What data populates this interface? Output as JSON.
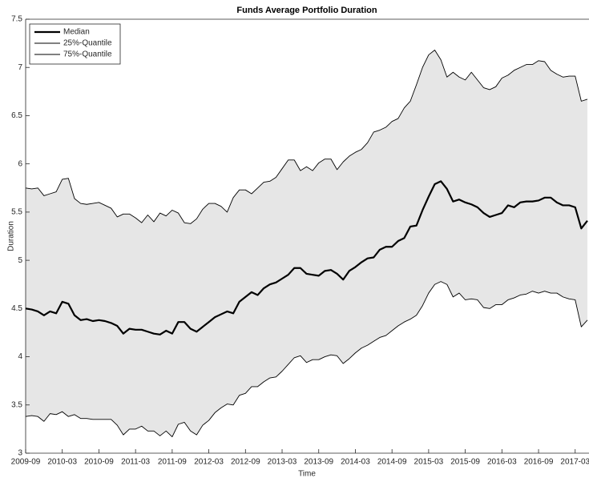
{
  "chart_data": {
    "type": "line",
    "title": "Funds Average Portfolio Duration",
    "x_label": "Time",
    "y_label": "Duration",
    "x": [
      "2009-09",
      "2009-10",
      "2009-11",
      "2009-12",
      "2010-01",
      "2010-02",
      "2010-03",
      "2010-04",
      "2010-05",
      "2010-06",
      "2010-07",
      "2010-08",
      "2010-09",
      "2010-10",
      "2010-11",
      "2010-12",
      "2011-01",
      "2011-02",
      "2011-03",
      "2011-04",
      "2011-05",
      "2011-06",
      "2011-07",
      "2011-08",
      "2011-09",
      "2011-10",
      "2011-11",
      "2011-12",
      "2012-01",
      "2012-02",
      "2012-03",
      "2012-04",
      "2012-05",
      "2012-06",
      "2012-07",
      "2012-08",
      "2012-09",
      "2012-10",
      "2012-11",
      "2012-12",
      "2013-01",
      "2013-02",
      "2013-03",
      "2013-04",
      "2013-05",
      "2013-06",
      "2013-07",
      "2013-08",
      "2013-09",
      "2013-10",
      "2013-11",
      "2013-12",
      "2014-01",
      "2014-02",
      "2014-03",
      "2014-04",
      "2014-05",
      "2014-06",
      "2014-07",
      "2014-08",
      "2014-09",
      "2014-10",
      "2014-11",
      "2014-12",
      "2015-01",
      "2015-02",
      "2015-03",
      "2015-04",
      "2015-05",
      "2015-06",
      "2015-07",
      "2015-08",
      "2015-09",
      "2015-10",
      "2015-11",
      "2015-12",
      "2016-01",
      "2016-02",
      "2016-03",
      "2016-04",
      "2016-05",
      "2016-06",
      "2016-07",
      "2016-08",
      "2016-09",
      "2016-10",
      "2016-11",
      "2016-12",
      "2017-01",
      "2017-02",
      "2017-03",
      "2017-04",
      "2017-05"
    ],
    "series": [
      {
        "name": "Median",
        "color": "#000000",
        "width": 2.2,
        "values": [
          4.5,
          4.49,
          4.47,
          4.43,
          4.47,
          4.45,
          4.57,
          4.55,
          4.43,
          4.38,
          4.39,
          4.37,
          4.38,
          4.37,
          4.35,
          4.32,
          4.24,
          4.29,
          4.28,
          4.28,
          4.26,
          4.24,
          4.23,
          4.27,
          4.24,
          4.36,
          4.36,
          4.29,
          4.26,
          4.31,
          4.36,
          4.41,
          4.44,
          4.47,
          4.45,
          4.57,
          4.62,
          4.67,
          4.64,
          4.71,
          4.75,
          4.77,
          4.81,
          4.85,
          4.92,
          4.92,
          4.86,
          4.85,
          4.84,
          4.89,
          4.9,
          4.86,
          4.8,
          4.89,
          4.93,
          4.98,
          5.02,
          5.03,
          5.11,
          5.14,
          5.14,
          5.2,
          5.23,
          5.35,
          5.36,
          5.52,
          5.66,
          5.79,
          5.82,
          5.74,
          5.61,
          5.63,
          5.6,
          5.58,
          5.55,
          5.49,
          5.45,
          5.47,
          5.49,
          5.57,
          5.55,
          5.6,
          5.61,
          5.61,
          5.62,
          5.65,
          5.65,
          5.6,
          5.57,
          5.57,
          5.55,
          5.33,
          5.41
        ]
      },
      {
        "name": "25%-Quantile",
        "color": "#000000",
        "width": 0.9,
        "values": [
          3.38,
          3.39,
          3.38,
          3.33,
          3.41,
          3.4,
          3.43,
          3.38,
          3.4,
          3.36,
          3.36,
          3.35,
          3.35,
          3.35,
          3.35,
          3.29,
          3.19,
          3.25,
          3.25,
          3.28,
          3.23,
          3.23,
          3.18,
          3.23,
          3.17,
          3.3,
          3.32,
          3.23,
          3.19,
          3.29,
          3.34,
          3.42,
          3.47,
          3.51,
          3.5,
          3.6,
          3.62,
          3.69,
          3.69,
          3.74,
          3.78,
          3.79,
          3.85,
          3.92,
          3.99,
          4.01,
          3.94,
          3.97,
          3.97,
          4.0,
          4.02,
          4.01,
          3.93,
          3.98,
          4.04,
          4.09,
          4.12,
          4.16,
          4.2,
          4.22,
          4.27,
          4.32,
          4.36,
          4.39,
          4.43,
          4.53,
          4.66,
          4.75,
          4.78,
          4.75,
          4.62,
          4.66,
          4.59,
          4.6,
          4.59,
          4.51,
          4.5,
          4.54,
          4.54,
          4.59,
          4.61,
          4.64,
          4.65,
          4.68,
          4.66,
          4.68,
          4.66,
          4.66,
          4.62,
          4.6,
          4.59,
          4.31,
          4.38
        ]
      },
      {
        "name": "75%-Quantile",
        "color": "#000000",
        "width": 0.9,
        "values": [
          5.75,
          5.74,
          5.75,
          5.67,
          5.69,
          5.71,
          5.84,
          5.85,
          5.64,
          5.59,
          5.58,
          5.59,
          5.6,
          5.57,
          5.54,
          5.45,
          5.48,
          5.48,
          5.44,
          5.39,
          5.47,
          5.4,
          5.49,
          5.46,
          5.52,
          5.49,
          5.39,
          5.38,
          5.43,
          5.53,
          5.59,
          5.59,
          5.56,
          5.5,
          5.65,
          5.73,
          5.73,
          5.69,
          5.75,
          5.81,
          5.82,
          5.86,
          5.95,
          6.04,
          6.04,
          5.93,
          5.97,
          5.93,
          6.01,
          6.05,
          6.05,
          5.94,
          6.02,
          6.08,
          6.12,
          6.15,
          6.22,
          6.33,
          6.35,
          6.38,
          6.44,
          6.47,
          6.58,
          6.65,
          6.82,
          7.0,
          7.13,
          7.18,
          7.08,
          6.9,
          6.95,
          6.9,
          6.87,
          6.95,
          6.87,
          6.79,
          6.77,
          6.8,
          6.89,
          6.92,
          6.97,
          7.0,
          7.03,
          7.03,
          7.07,
          7.06,
          6.97,
          6.93,
          6.9,
          6.91,
          6.91,
          6.65,
          6.67
        ]
      }
    ],
    "band_color": "#e6e6e6",
    "xlim": [
      "2009-09",
      "2017-05"
    ],
    "xticks": [
      "2009-09",
      "2010-03",
      "2010-09",
      "2011-03",
      "2011-09",
      "2012-03",
      "2012-09",
      "2013-03",
      "2013-09",
      "2014-03",
      "2014-09",
      "2015-03",
      "2015-09",
      "2016-03",
      "2016-09",
      "2017-03"
    ],
    "ylim": [
      3,
      7.5
    ],
    "yticks": [
      3,
      3.5,
      4,
      4.5,
      5,
      5.5,
      6,
      6.5,
      7,
      7.5
    ],
    "legend": "upper left"
  }
}
